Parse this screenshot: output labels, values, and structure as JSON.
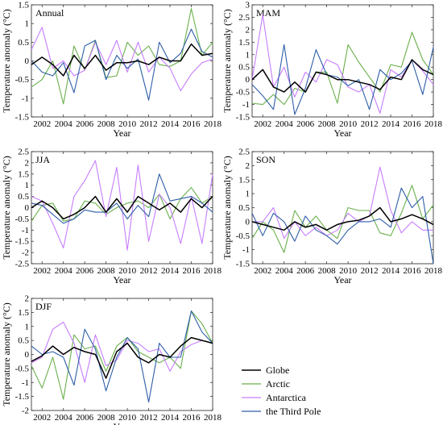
{
  "years": [
    2001,
    2002,
    2003,
    2004,
    2005,
    2006,
    2007,
    2008,
    2009,
    2010,
    2011,
    2012,
    2013,
    2014,
    2015,
    2016,
    2017,
    2018
  ],
  "xlabel": "Year",
  "ylabel": "Temperature anomaly (°C)",
  "colors": {
    "Globe": "#000000",
    "Arctic": "#6ab04c",
    "Antarctica": "#c77dff",
    "the Third Pole": "#2e5ea8"
  },
  "legend": {
    "placement": "bottom-right",
    "entries": [
      "Globe",
      "Arctic",
      "Antarctica",
      "the Third Pole"
    ]
  },
  "chart_data": [
    {
      "type": "line",
      "title": "Annual",
      "xlabel": "Year",
      "ylabel": "Temperature anomaly (°C)",
      "xlim": [
        2001,
        2018
      ],
      "ylim": [
        -1.5,
        1.5
      ],
      "yticks": [
        -1.5,
        -1,
        -0.5,
        0,
        0.5,
        1,
        1.5
      ],
      "xticks": [
        2002,
        2004,
        2006,
        2008,
        2010,
        2012,
        2014,
        2016,
        2018
      ],
      "x": [
        2001,
        2002,
        2003,
        2004,
        2005,
        2006,
        2007,
        2008,
        2009,
        2010,
        2011,
        2012,
        2013,
        2014,
        2015,
        2016,
        2017,
        2018
      ],
      "series": [
        {
          "name": "Globe",
          "values": [
            -0.1,
            0.1,
            -0.1,
            -0.4,
            0.15,
            -0.2,
            0.15,
            -0.25,
            -0.05,
            -0.05,
            0.0,
            -0.1,
            0.1,
            0.0,
            0.0,
            0.45,
            0.15,
            0.2
          ]
        },
        {
          "name": "Arctic",
          "values": [
            -0.7,
            -0.5,
            0.0,
            -1.15,
            0.4,
            -0.25,
            0.55,
            -0.45,
            -0.4,
            0.5,
            0.15,
            0.4,
            -0.1,
            -0.15,
            0.0,
            1.4,
            0.15,
            0.5
          ]
        },
        {
          "name": "Antarctica",
          "values": [
            0.3,
            0.9,
            -0.2,
            0.0,
            -0.4,
            -0.25,
            0.5,
            -0.1,
            0.55,
            -0.3,
            0.5,
            -0.3,
            0.1,
            -0.2,
            -0.8,
            -0.35,
            -0.05,
            0.05
          ]
        },
        {
          "name": "the Third Pole",
          "values": [
            0.0,
            -0.3,
            -0.4,
            -0.05,
            -0.85,
            0.4,
            0.55,
            -0.5,
            0.15,
            -0.2,
            0.05,
            -1.05,
            0.5,
            -0.05,
            0.2,
            0.85,
            0.25,
            0.1
          ]
        }
      ]
    },
    {
      "type": "line",
      "title": "MAM",
      "xlabel": "Year",
      "ylabel": "Temperature anomaly (°C)",
      "xlim": [
        2001,
        2018
      ],
      "ylim": [
        -1.5,
        3
      ],
      "yticks": [
        -1.5,
        -1,
        -0.5,
        0,
        0.5,
        1,
        1.5,
        2,
        2.5,
        3
      ],
      "xticks": [
        2002,
        2004,
        2006,
        2008,
        2010,
        2012,
        2014,
        2016,
        2018
      ],
      "x": [
        2001,
        2002,
        2003,
        2004,
        2005,
        2006,
        2007,
        2008,
        2009,
        2010,
        2011,
        2012,
        2013,
        2014,
        2015,
        2016,
        2017,
        2018
      ],
      "series": [
        {
          "name": "Globe",
          "values": [
            0.0,
            0.4,
            -0.3,
            -0.5,
            -0.1,
            -0.5,
            0.3,
            0.2,
            0.0,
            0.0,
            -0.1,
            -0.2,
            -0.4,
            0.1,
            0.0,
            0.8,
            0.4,
            0.2
          ]
        },
        {
          "name": "Arctic",
          "values": [
            -0.95,
            -1.0,
            -0.6,
            -1.0,
            -0.35,
            -0.5,
            0.3,
            0.3,
            -0.95,
            1.4,
            0.7,
            0.1,
            -0.5,
            0.6,
            0.5,
            1.9,
            0.8,
            0.2
          ]
        },
        {
          "name": "Antarctica",
          "values": [
            0.0,
            2.6,
            -0.3,
            0.5,
            -0.7,
            0.3,
            -0.1,
            0.8,
            0.6,
            -0.3,
            -0.5,
            -0.2,
            -1.35,
            0.4,
            0.1,
            0.8,
            0.35,
            -0.2
          ]
        },
        {
          "name": "the Third Pole",
          "values": [
            -0.2,
            -0.65,
            -1.2,
            1.4,
            -1.4,
            -0.35,
            1.2,
            0.2,
            0.1,
            -0.25,
            0.0,
            -1.2,
            0.4,
            0.0,
            0.25,
            0.75,
            -0.6,
            1.3
          ]
        }
      ]
    },
    {
      "type": "line",
      "title": "JJA",
      "xlabel": "Year",
      "ylabel": "Temperature anomaly (°C)",
      "xlim": [
        2001,
        2018
      ],
      "ylim": [
        -2.5,
        2.5
      ],
      "yticks": [
        -2.5,
        -2,
        -1.5,
        -1,
        -0.5,
        0,
        0.5,
        1,
        1.5,
        2,
        2.5
      ],
      "xticks": [
        2002,
        2004,
        2006,
        2008,
        2010,
        2012,
        2014,
        2016,
        2018
      ],
      "x": [
        2001,
        2002,
        2003,
        2004,
        2005,
        2006,
        2007,
        2008,
        2009,
        2010,
        2011,
        2012,
        2013,
        2014,
        2015,
        2016,
        2017,
        2018
      ],
      "series": [
        {
          "name": "Globe",
          "values": [
            0.0,
            0.3,
            0.0,
            -0.5,
            -0.3,
            0.0,
            0.5,
            -0.2,
            0.4,
            -0.2,
            0.5,
            0.2,
            -0.1,
            0.2,
            -0.2,
            0.4,
            0.0,
            0.5
          ]
        },
        {
          "name": "Arctic",
          "values": [
            -0.6,
            0.1,
            0.2,
            -0.6,
            -0.5,
            0.3,
            0.2,
            -0.3,
            0.0,
            0.2,
            0.3,
            0.0,
            0.6,
            -0.5,
            0.4,
            0.9,
            0.2,
            0.5
          ]
        },
        {
          "name": "Antarctica",
          "values": [
            0.5,
            0.3,
            -0.7,
            -1.8,
            0.5,
            1.2,
            2.1,
            -0.4,
            1.8,
            -1.9,
            1.9,
            -1.5,
            0.6,
            0.0,
            -1.6,
            0.5,
            -1.6,
            1.5
          ]
        },
        {
          "name": "the Third Pole",
          "values": [
            0.2,
            0.1,
            -0.3,
            -0.7,
            -0.5,
            -0.1,
            -0.2,
            -0.2,
            0.2,
            -0.5,
            0.1,
            -0.4,
            1.5,
            0.3,
            0.4,
            0.5,
            0.2,
            -0.2
          ]
        }
      ]
    },
    {
      "type": "line",
      "title": "SON",
      "xlabel": "Year",
      "ylabel": "Temperature anomaly (°C)",
      "xlim": [
        2001,
        2018
      ],
      "ylim": [
        -1.5,
        2.5
      ],
      "yticks": [
        -1.5,
        -1,
        -0.5,
        0,
        0.5,
        1,
        1.5,
        2,
        2.5
      ],
      "xticks": [
        2002,
        2004,
        2006,
        2008,
        2010,
        2012,
        2014,
        2016,
        2018
      ],
      "x": [
        2001,
        2002,
        2003,
        2004,
        2005,
        2006,
        2007,
        2008,
        2009,
        2010,
        2011,
        2012,
        2013,
        2014,
        2015,
        2016,
        2017,
        2018
      ],
      "series": [
        {
          "name": "Globe",
          "values": [
            0.0,
            -0.1,
            -0.2,
            -0.3,
            0.0,
            -0.2,
            -0.1,
            -0.3,
            -0.1,
            0.0,
            0.05,
            0.2,
            0.5,
            0.0,
            0.1,
            0.25,
            0.1,
            -0.1
          ]
        },
        {
          "name": "Arctic",
          "values": [
            -0.6,
            0.0,
            -0.3,
            -1.1,
            0.4,
            -0.2,
            0.2,
            -0.3,
            -0.6,
            0.5,
            0.4,
            0.4,
            -0.4,
            -0.5,
            0.3,
            1.3,
            0.1,
            0.6
          ]
        },
        {
          "name": "Antarctica",
          "values": [
            0.0,
            0.0,
            0.5,
            -0.6,
            0.0,
            -0.5,
            -0.2,
            -0.5,
            -0.3,
            0.3,
            0.0,
            0.2,
            1.95,
            0.4,
            -0.4,
            0.0,
            -0.3,
            -0.3
          ]
        },
        {
          "name": "the Third Pole",
          "values": [
            0.3,
            -0.5,
            0.3,
            0.0,
            -0.7,
            0.2,
            -0.3,
            -0.5,
            -0.8,
            -0.3,
            0.0,
            0.0,
            0.1,
            -0.2,
            1.2,
            0.5,
            0.9,
            -1.5
          ]
        }
      ]
    },
    {
      "type": "line",
      "title": "DJF",
      "xlabel": "Year",
      "ylabel": "Temperature anomaly (°C)",
      "xlim": [
        2001,
        2018
      ],
      "ylim": [
        -2,
        2
      ],
      "yticks": [
        -2,
        -1.5,
        -1,
        -0.5,
        0,
        0.5,
        1,
        1.5,
        2
      ],
      "xticks": [
        2002,
        2004,
        2006,
        2008,
        2010,
        2012,
        2014,
        2016,
        2018
      ],
      "x": [
        2001,
        2002,
        2003,
        2004,
        2005,
        2006,
        2007,
        2008,
        2009,
        2010,
        2011,
        2012,
        2013,
        2014,
        2015,
        2016,
        2017,
        2018
      ],
      "series": [
        {
          "name": "Globe",
          "values": [
            -0.25,
            -0.05,
            0.3,
            0.0,
            0.25,
            0.1,
            0.0,
            -0.85,
            0.1,
            0.4,
            -0.1,
            -0.3,
            0.0,
            -0.1,
            0.3,
            0.6,
            0.5,
            0.4
          ]
        },
        {
          "name": "Arctic",
          "values": [
            -0.4,
            -1.2,
            -0.1,
            -1.6,
            0.7,
            0.2,
            0.3,
            -0.6,
            0.3,
            0.6,
            0.1,
            -0.1,
            -0.3,
            -0.1,
            -0.5,
            1.55,
            1.1,
            0.4
          ]
        },
        {
          "name": "Antarctica",
          "values": [
            -0.3,
            -0.1,
            0.9,
            1.15,
            0.4,
            -1.0,
            0.7,
            -0.4,
            -0.2,
            0.5,
            0.4,
            0.1,
            0.2,
            -0.6,
            0.1,
            0.35,
            0.5,
            0.4
          ]
        },
        {
          "name": "the Third Pole",
          "values": [
            0.3,
            0.0,
            0.1,
            -0.1,
            -1.1,
            0.9,
            0.2,
            -1.3,
            -0.1,
            0.6,
            0.2,
            -1.7,
            0.4,
            -0.1,
            -0.1,
            1.55,
            0.8,
            0.4
          ]
        }
      ]
    }
  ]
}
